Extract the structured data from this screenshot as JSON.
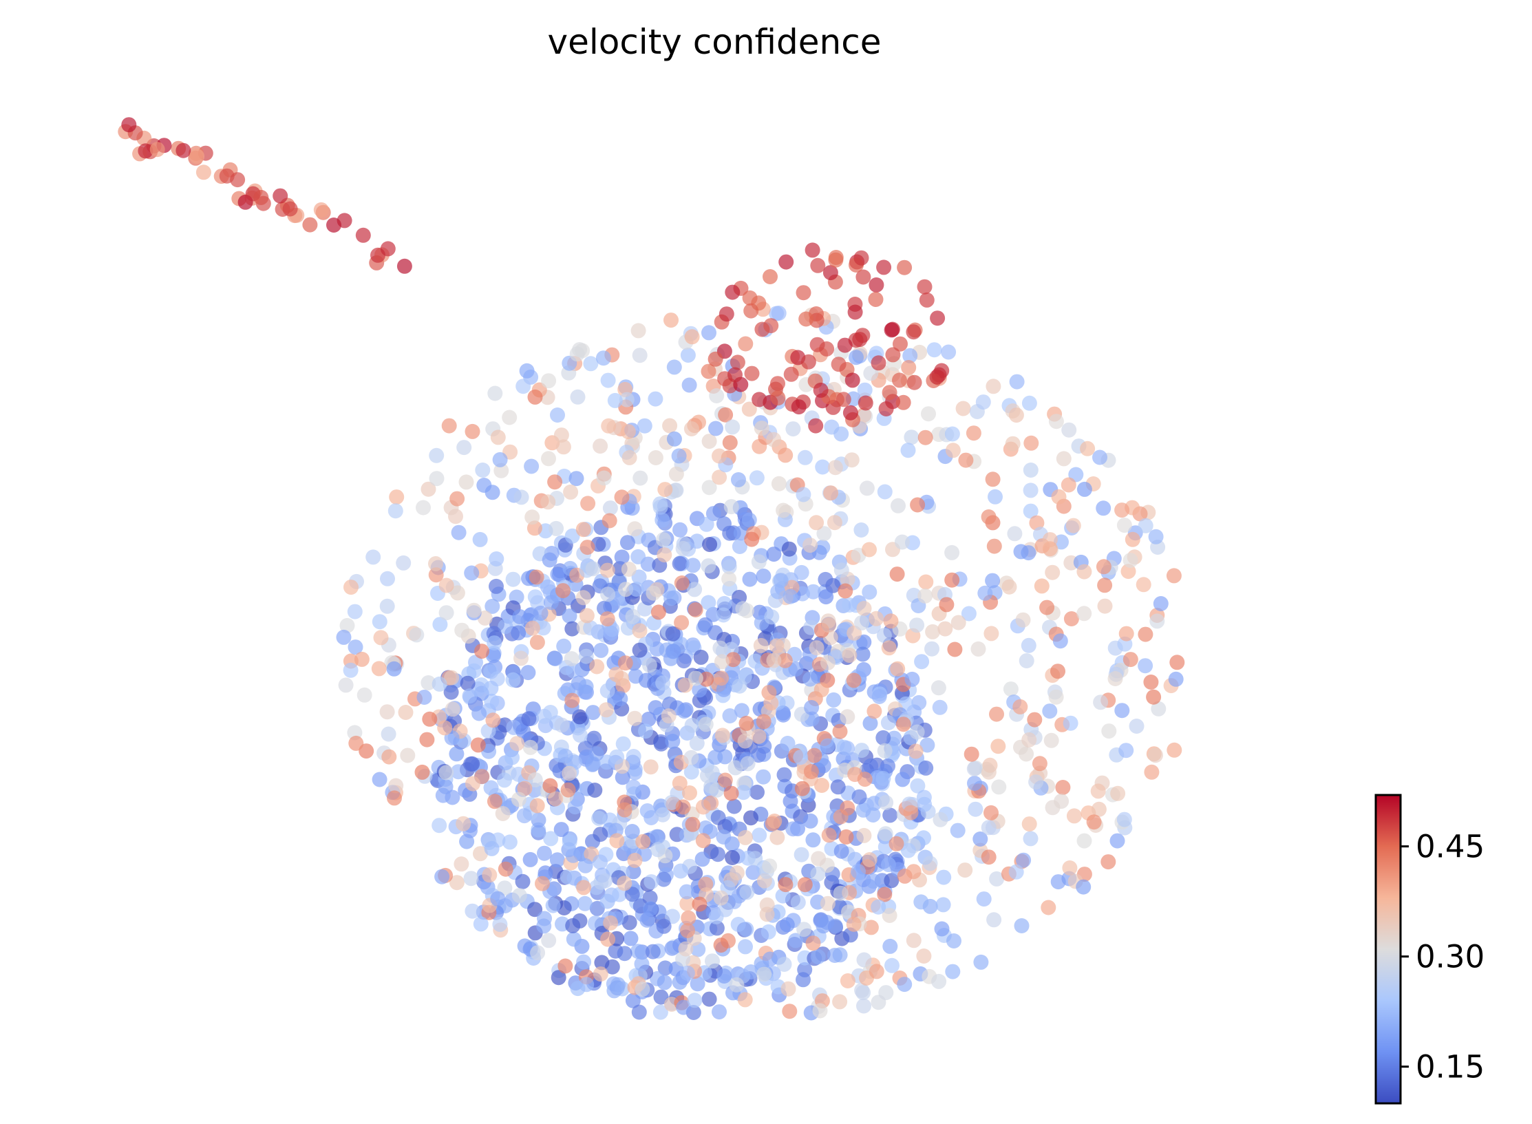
{
  "chart_data": {
    "type": "scatter",
    "title": "velocity confidence",
    "xlabel": "",
    "ylabel": "",
    "axes_visible": false,
    "grid": false,
    "colormap": "coolwarm",
    "colorbar": {
      "label": "",
      "range": [
        0.1,
        0.52
      ],
      "ticks": [
        0.15,
        0.3,
        0.45
      ],
      "tick_labels": [
        "0.15",
        "0.30",
        "0.45"
      ],
      "stops": [
        "#3b4cc0",
        "#6f92f3",
        "#aac7fd",
        "#dddcdc",
        "#f6b69a",
        "#e36b53",
        "#b40426"
      ]
    },
    "xlim": [
      -1.5,
      14.5
    ],
    "ylim": [
      -10.5,
      0.5
    ],
    "marker_alpha": 0.65,
    "clusters": [
      {
        "name": "",
        "x": [
          3.0,
          9.2
        ],
        "y": [
          -10.0,
          -4.0
        ],
        "n": 900,
        "value_range": [
          0.1,
          0.26
        ]
      },
      {
        "name": "",
        "x": [
          1.8,
          12.5
        ],
        "y": [
          -10.0,
          -1.8
        ],
        "n": 1050,
        "value_range": [
          0.18,
          0.44
        ]
      },
      {
        "name": "",
        "x": [
          6.5,
          9.5
        ],
        "y": [
          -3.2,
          -1.1
        ],
        "n": 90,
        "value_range": [
          0.45,
          0.52
        ]
      },
      {
        "name": "",
        "x": [
          -0.8,
          2.6
        ],
        "y": [
          -1.2,
          0.2
        ],
        "n": 45,
        "value_range": [
          0.38,
          0.52
        ]
      }
    ],
    "seed": 7
  }
}
